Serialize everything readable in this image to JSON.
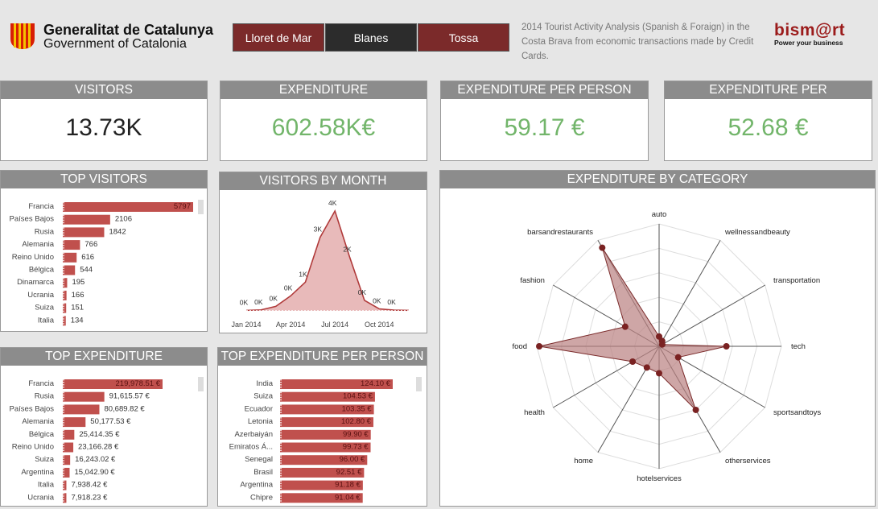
{
  "header": {
    "org_line1": "Generalitat de Catalunya",
    "org_line2": "Government of Catalonia",
    "tabs": [
      {
        "label": "Lloret de Mar"
      },
      {
        "label": "Blanes"
      },
      {
        "label": "Tossa"
      }
    ],
    "description": "2014 Tourist Activity Analysis (Spanish & Foraign) in the Costa Brava from economic transactions made by Credit Cards.",
    "brand": "bism@rt",
    "brand_tagline": "Power your business"
  },
  "kpis": [
    {
      "title": "VISITORS",
      "value": "13.73K"
    },
    {
      "title": "EXPENDITURE",
      "value": "602.58K€"
    },
    {
      "title": "EXPENDITURE PER PERSON",
      "value": "59.17 €"
    },
    {
      "title": "EXPENDITURE PER TRANSACTION",
      "value": "52.68 €"
    }
  ],
  "chart_data": [
    {
      "type": "bar",
      "title": "TOP VISITORS",
      "orientation": "horizontal",
      "categories": [
        "Francia",
        "Países Bajos",
        "Rusia",
        "Alemania",
        "Reino Unido",
        "Bélgica",
        "Dinamarca",
        "Ucrania",
        "Suiza",
        "Italia"
      ],
      "values": [
        5797,
        2106,
        1842,
        766,
        616,
        544,
        195,
        166,
        151,
        134
      ],
      "labels": [
        "5797",
        "2106",
        "1842",
        "766",
        "616",
        "544",
        "195",
        "166",
        "151",
        "134"
      ],
      "color": "#c0504d"
    },
    {
      "type": "area",
      "title": "VISITORS BY MONTH",
      "x": [
        "Jan 2014",
        "Feb 2014",
        "Mar 2014",
        "Apr 2014",
        "May 2014",
        "Jun 2014",
        "Jul 2014",
        "Aug 2014",
        "Sep 2014",
        "Oct 2014",
        "Nov 2014",
        "Dec 2014"
      ],
      "values": [
        20,
        40,
        180,
        600,
        1150,
        2950,
        4000,
        2150,
        420,
        80,
        30,
        20
      ],
      "point_labels": [
        "0K",
        "0K",
        "0K",
        "0K",
        "1K",
        "3K",
        "4K",
        "2K",
        "0K",
        "0K",
        "0K",
        ""
      ],
      "xticks": [
        "Jan 2014",
        "Apr 2014",
        "Jul 2014",
        "Oct 2014"
      ],
      "color": "#c0504d"
    },
    {
      "type": "bar",
      "title": "TOP EXPENDITURE",
      "orientation": "horizontal",
      "categories": [
        "Francia",
        "Rusia",
        "Países Bajos",
        "Alemania",
        "Bélgica",
        "Reino Unido",
        "Suiza",
        "Argentina",
        "Italia",
        "Ucrania"
      ],
      "values": [
        219978.51,
        91615.57,
        80689.82,
        50177.53,
        25414.35,
        23166.28,
        16243.02,
        15042.9,
        7938.42,
        7918.23
      ],
      "labels": [
        "219,978.51 €",
        "91,615.57 €",
        "80,689.82 €",
        "50,177.53 €",
        "25,414.35 €",
        "23,166.28 €",
        "16,243.02 €",
        "15,042.90 €",
        "7,938.42 €",
        "7,918.23 €"
      ],
      "color": "#c0504d"
    },
    {
      "type": "bar",
      "title": "TOP EXPENDITURE PER PERSON",
      "orientation": "horizontal",
      "categories": [
        "India",
        "Suiza",
        "Ecuador",
        "Letonia",
        "Azerbaiyán",
        "Emiratos Á...",
        "Senegal",
        "Brasil",
        "Argentina",
        "Chipre"
      ],
      "values": [
        124.1,
        104.53,
        103.35,
        102.8,
        99.9,
        99.73,
        96.0,
        92.51,
        91.18,
        91.04
      ],
      "labels": [
        "124.10 €",
        "104.53 €",
        "103.35 €",
        "102.80 €",
        "99.90 €",
        "99.73 €",
        "96.00 €",
        "92.51 €",
        "91.18 €",
        "91.04 €"
      ],
      "color": "#c0504d"
    },
    {
      "type": "radar",
      "title": "EXPENDITURE BY CATEGORY",
      "categories": [
        "auto",
        "wellnessandbeauty",
        "transportation",
        "tech",
        "sportsandtoys",
        "otherservices",
        "hotelservices",
        "home",
        "health",
        "food",
        "fashion",
        "barsandrestaurants"
      ],
      "values": [
        0.08,
        0.05,
        0.03,
        0.55,
        0.18,
        0.6,
        0.22,
        0.2,
        0.25,
        0.98,
        0.32,
        0.93
      ],
      "color": "#c0504d"
    }
  ]
}
